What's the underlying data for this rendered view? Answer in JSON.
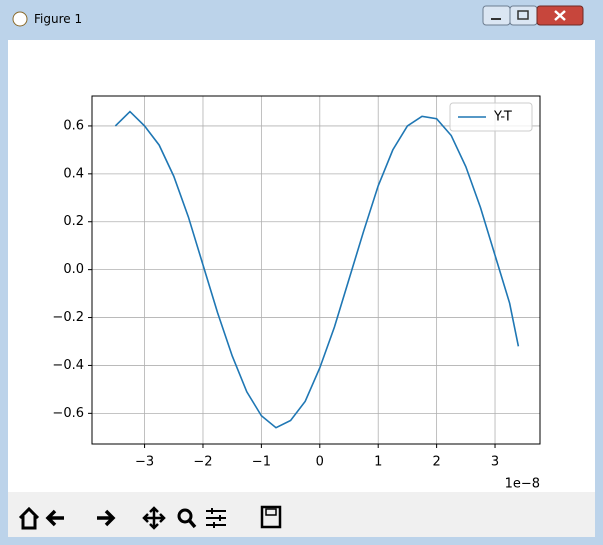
{
  "window": {
    "title": "Figure 1"
  },
  "chart_data": {
    "type": "line",
    "x": [
      -3.5,
      -3.25,
      -3.0,
      -2.75,
      -2.5,
      -2.25,
      -2.0,
      -1.75,
      -1.5,
      -1.25,
      -1.0,
      -0.75,
      -0.5,
      -0.25,
      0,
      0.25,
      0.5,
      0.75,
      1.0,
      1.25,
      1.5,
      1.75,
      2.0,
      2.25,
      2.5,
      2.75,
      3.0,
      3.25,
      3.4
    ],
    "series": [
      {
        "name": "Y-T",
        "color": "#1f77b4",
        "values": [
          0.6,
          0.66,
          0.6,
          0.52,
          0.39,
          0.22,
          0.02,
          -0.18,
          -0.36,
          -0.51,
          -0.61,
          -0.66,
          -0.63,
          -0.55,
          -0.41,
          -0.24,
          -0.04,
          0.16,
          0.35,
          0.5,
          0.6,
          0.64,
          0.63,
          0.56,
          0.43,
          0.26,
          0.06,
          -0.14,
          -0.32
        ]
      }
    ],
    "xlim": [
      -3.9,
      3.77
    ],
    "xticks": [
      {
        "value": -3,
        "label": "−3"
      },
      {
        "value": -2,
        "label": "−2"
      },
      {
        "value": -1,
        "label": "−1"
      },
      0,
      1,
      2,
      3
    ],
    "x_offset_label": "1e−8",
    "ylim": [
      -0.728,
      0.725
    ],
    "yticks": [
      {
        "value": -0.6,
        "label": "−0.6"
      },
      {
        "value": -0.4,
        "label": "−0.4"
      },
      {
        "value": -0.2,
        "label": "−0.2"
      },
      {
        "value": 0,
        "label": "0.0"
      },
      0.2,
      0.4,
      0.6
    ],
    "grid": true,
    "legend": "upper right"
  }
}
